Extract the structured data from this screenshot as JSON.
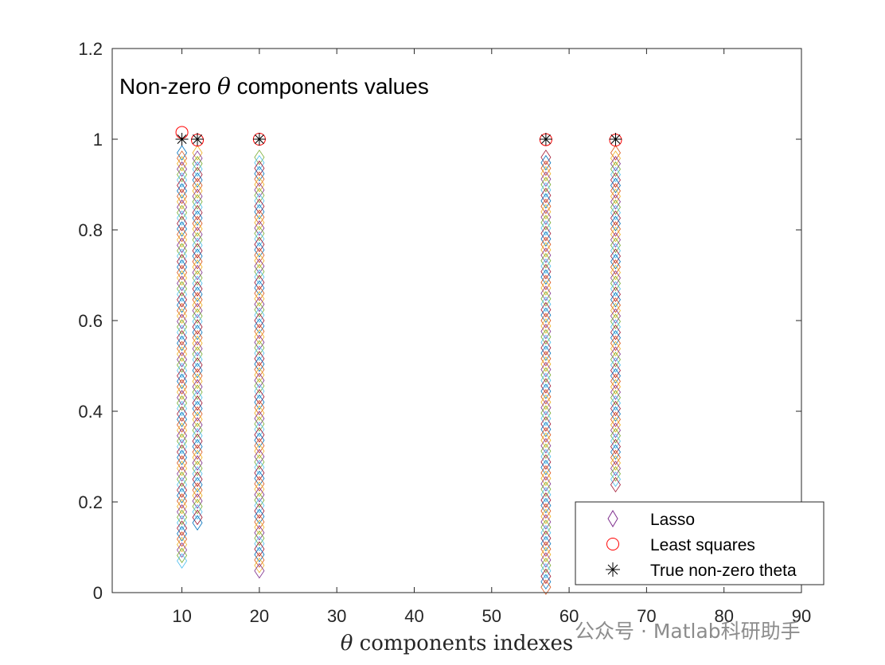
{
  "chart_data": {
    "type": "scatter",
    "title_parts": [
      "Non-zero ",
      "θ",
      " components values"
    ],
    "xlabel_parts": [
      "θ",
      " components indexes"
    ],
    "xlim": [
      1,
      90
    ],
    "ylim": [
      0,
      1.2
    ],
    "x_ticks": [
      10,
      20,
      30,
      40,
      50,
      60,
      70,
      80,
      90
    ],
    "x_tick_labels": [
      "10",
      "20",
      "30",
      "40",
      "50",
      "60",
      "70",
      "80",
      "90"
    ],
    "y_ticks": [
      0,
      0.2,
      0.4,
      0.6,
      0.8,
      1,
      1.2
    ],
    "y_tick_labels": [
      "0",
      "0.2",
      "0.4",
      "0.6",
      "0.8",
      "1",
      "1.2"
    ],
    "legend_position": "bottom-right",
    "series": [
      {
        "name": "Lasso",
        "marker": "diamond",
        "colors": [
          "#0072BD",
          "#D95319",
          "#EDB120",
          "#7E2F8E",
          "#77AC30",
          "#4DBEEE",
          "#A2142F"
        ],
        "columns": [
          {
            "x": 10,
            "y_min": 0.07,
            "y_max": 0.97
          },
          {
            "x": 12,
            "y_min": 0.15,
            "y_max": 0.97
          },
          {
            "x": 20,
            "y_min": 0.04,
            "y_max": 0.96
          },
          {
            "x": 57,
            "y_min": 0.01,
            "y_max": 0.96
          },
          {
            "x": 66,
            "y_min": 0.23,
            "y_max": 0.97
          }
        ],
        "step": 0.012
      },
      {
        "name": "Least squares",
        "marker": "circle",
        "color": "#FF0000",
        "points": [
          {
            "x": 10,
            "y": 1.015
          },
          {
            "x": 12,
            "y": 0.998
          },
          {
            "x": 20,
            "y": 1.0
          },
          {
            "x": 57,
            "y": 0.999
          },
          {
            "x": 66,
            "y": 0.998
          }
        ]
      },
      {
        "name": "True non-zero theta",
        "marker": "asterisk",
        "color": "#000000",
        "points": [
          {
            "x": 10,
            "y": 1
          },
          {
            "x": 12,
            "y": 1
          },
          {
            "x": 20,
            "y": 1
          },
          {
            "x": 57,
            "y": 1
          },
          {
            "x": 66,
            "y": 1
          }
        ]
      }
    ]
  },
  "watermark": {
    "text": "公众号 · Matlab科研助手"
  }
}
